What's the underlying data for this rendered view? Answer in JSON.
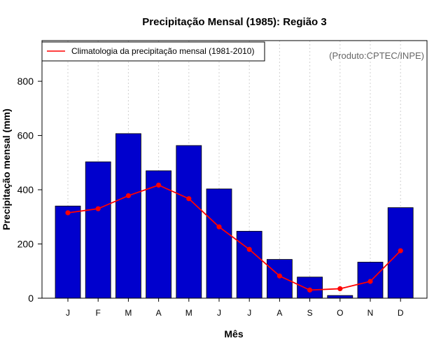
{
  "chart_data": {
    "type": "bar",
    "title": "Precipitação Mensal (1985): Região 3",
    "xlabel": "Mês",
    "ylabel": "Precipitação mensal (mm)",
    "ylim": [
      0,
      950
    ],
    "yticks": [
      0,
      200,
      400,
      600,
      800
    ],
    "categories": [
      "J",
      "F",
      "M",
      "A",
      "M",
      "J",
      "J",
      "A",
      "S",
      "O",
      "N",
      "D"
    ],
    "series": [
      {
        "name": "Precipitação mensal (1985)",
        "type": "bar",
        "color": "#0000CD",
        "values": [
          340,
          503,
          607,
          470,
          563,
          403,
          247,
          143,
          78,
          10,
          133,
          334
        ]
      },
      {
        "name": "Climatologia da precipitação mensal (1981-2010)",
        "type": "line",
        "color": "#FF0000",
        "values": [
          315,
          330,
          378,
          417,
          367,
          263,
          180,
          82,
          30,
          35,
          62,
          175
        ]
      }
    ],
    "legend": {
      "position": "top-left",
      "entries": [
        "Climatologia da precipitação mensal (1981-2010)"
      ]
    },
    "annotation": "(Produto:CPTEC/INPE)",
    "grid": "vertical-dotted"
  }
}
